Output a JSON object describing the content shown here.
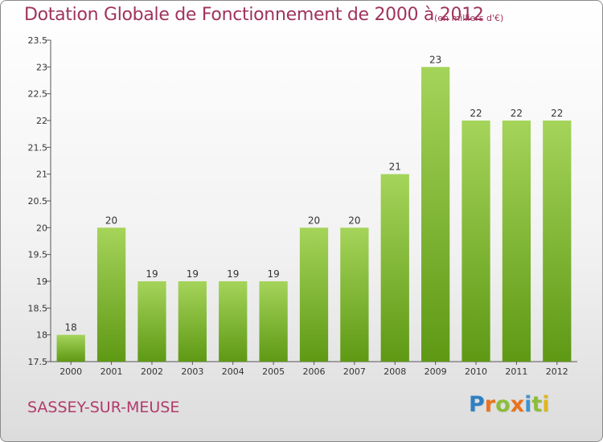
{
  "header": {
    "title": "Dotation Globale de Fonctionnement de 2000 à 2012",
    "unit": "(en milliers d'€)"
  },
  "commune": "SASSEY-SUR-MEUSE",
  "logo": {
    "letters": [
      "P",
      "r",
      "o",
      "x",
      "i",
      "t",
      "i"
    ],
    "colors": [
      "#2f7fc1",
      "#e9731f",
      "#8cbd3a",
      "#e9731f",
      "#3d94cf",
      "#8cbd3a",
      "#e0b51f"
    ]
  },
  "colors": {
    "bar_top": "#a5d45a",
    "bar_bottom": "#5e9914",
    "axis": "#555555",
    "grid": "#dddddd"
  },
  "chart_data": {
    "type": "bar",
    "title": "Dotation Globale de Fonctionnement de 2000 à 2012",
    "xlabel": "",
    "ylabel": "",
    "categories": [
      "2000",
      "2001",
      "2002",
      "2003",
      "2004",
      "2005",
      "2006",
      "2007",
      "2008",
      "2009",
      "2010",
      "2011",
      "2012"
    ],
    "values": [
      18,
      20,
      19,
      19,
      19,
      19,
      20,
      20,
      21,
      23,
      22,
      22,
      22
    ],
    "ylim": [
      17.5,
      23.5
    ],
    "yticks": [
      "17.5",
      "18",
      "18.5",
      "19",
      "19.5",
      "20",
      "20.5",
      "21",
      "21.5",
      "22",
      "22.5",
      "23",
      "23.5"
    ],
    "grid": false,
    "legend": "none"
  }
}
